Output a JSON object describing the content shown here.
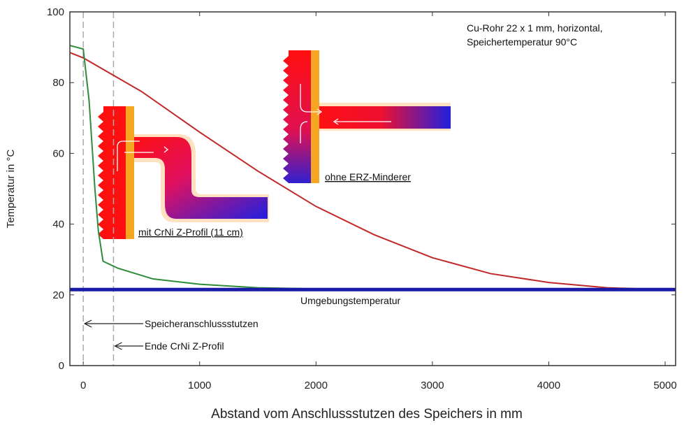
{
  "chart_data": {
    "type": "line",
    "xlabel": "Abstand vom Anschlussstutzen des Speichers in mm",
    "ylabel": "Temperatur in °C",
    "annotation": [
      "Cu-Rohr 22 x 1 mm, horizontal,",
      "Speichertemperatur 90°C"
    ],
    "xlim": [
      -115,
      5090
    ],
    "ylim": [
      0,
      100
    ],
    "xticks": [
      0,
      1000,
      2000,
      3000,
      4000,
      5000
    ],
    "yticks": [
      0,
      20,
      40,
      60,
      80,
      100
    ],
    "series": [
      {
        "name": "ohne ERZ-Minderer",
        "color": "#c0282a",
        "x": [
          -115,
          0,
          500,
          1000,
          1500,
          2000,
          2500,
          3000,
          3500,
          4000,
          4500,
          5000,
          5090
        ],
        "values": [
          88.5,
          87,
          77.5,
          66,
          55,
          45,
          37,
          30.5,
          26,
          23.5,
          22,
          21.5,
          21.5
        ]
      },
      {
        "name": "mit CrNi Z-Profil (11 cm)",
        "color": "#2e8b3a",
        "x": [
          -115,
          0,
          50,
          100,
          130,
          170,
          300,
          600,
          1000,
          1500,
          2000,
          5090
        ],
        "values": [
          90.5,
          89.5,
          75,
          50,
          38,
          29.5,
          27.5,
          24.5,
          23,
          22,
          21.7,
          21.5
        ]
      },
      {
        "name": "Umgebungstemperatur",
        "color": "#1a1aa8",
        "x": [
          -115,
          5090
        ],
        "values": [
          21.5,
          21.5
        ]
      }
    ],
    "vlines": [
      {
        "x": 0,
        "label": "Speicheranschlussstutzen"
      },
      {
        "x": 260,
        "label": "Ende CrNi Z-Profil"
      }
    ]
  }
}
